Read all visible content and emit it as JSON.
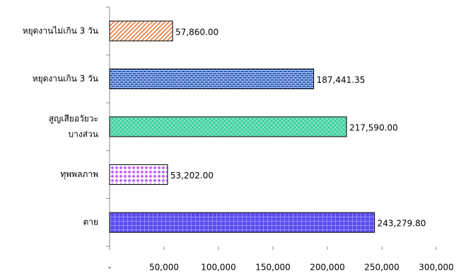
{
  "chart_data": {
    "type": "bar",
    "orientation": "horizontal",
    "categories": [
      "หยุดงานไม่เกิน 3 วัน",
      "หยุดงานเกิน 3 วัน",
      [
        "สูญเสียอวัยวะ",
        "บางส่วน"
      ],
      "ทุพพลภาพ",
      "ตาย"
    ],
    "values": [
      57860,
      187441.35,
      217590,
      53202,
      243279.8
    ],
    "value_labels": [
      "57,860.00",
      "187,441.35",
      "217,590.00",
      "53,202.00",
      "243,279.80"
    ],
    "colors": [
      "#e8793a",
      "#2a5cb8",
      "#3fcf9f",
      "#c060f0",
      "#5b4cf0"
    ],
    "xlim": [
      0,
      300000
    ],
    "xticks": [
      {
        "value": 0,
        "label": "-"
      },
      {
        "value": 50000,
        "label": "50,000"
      },
      {
        "value": 100000,
        "label": "100,000"
      },
      {
        "value": 150000,
        "label": "150,000"
      },
      {
        "value": 200000,
        "label": "200,000"
      },
      {
        "value": 250000,
        "label": "250,000"
      },
      {
        "value": 300000,
        "label": "300,000"
      }
    ],
    "grid": false
  }
}
